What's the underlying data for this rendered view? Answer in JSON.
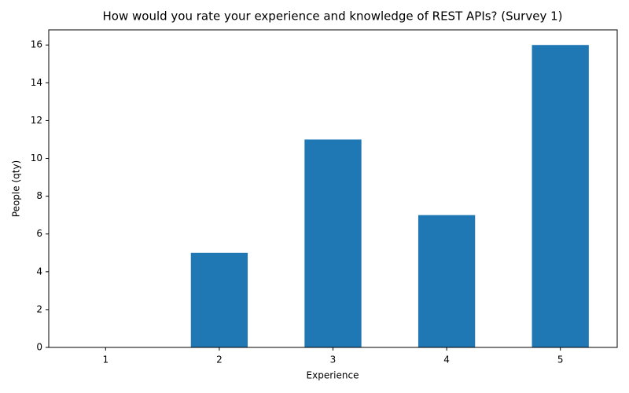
{
  "chart_data": {
    "type": "bar",
    "title": "How would you rate your experience and knowledge of REST APIs? (Survey 1)",
    "x_label": "Experience",
    "y_label": "People (qty)",
    "categories": [
      "1",
      "2",
      "3",
      "4",
      "5"
    ],
    "values": [
      0,
      5,
      11,
      7,
      16
    ],
    "color": "#1f77b4",
    "ylim": [
      0,
      16.8
    ],
    "yticks": [
      0,
      2,
      4,
      6,
      8,
      10,
      12,
      14,
      16
    ],
    "grid": false
  }
}
